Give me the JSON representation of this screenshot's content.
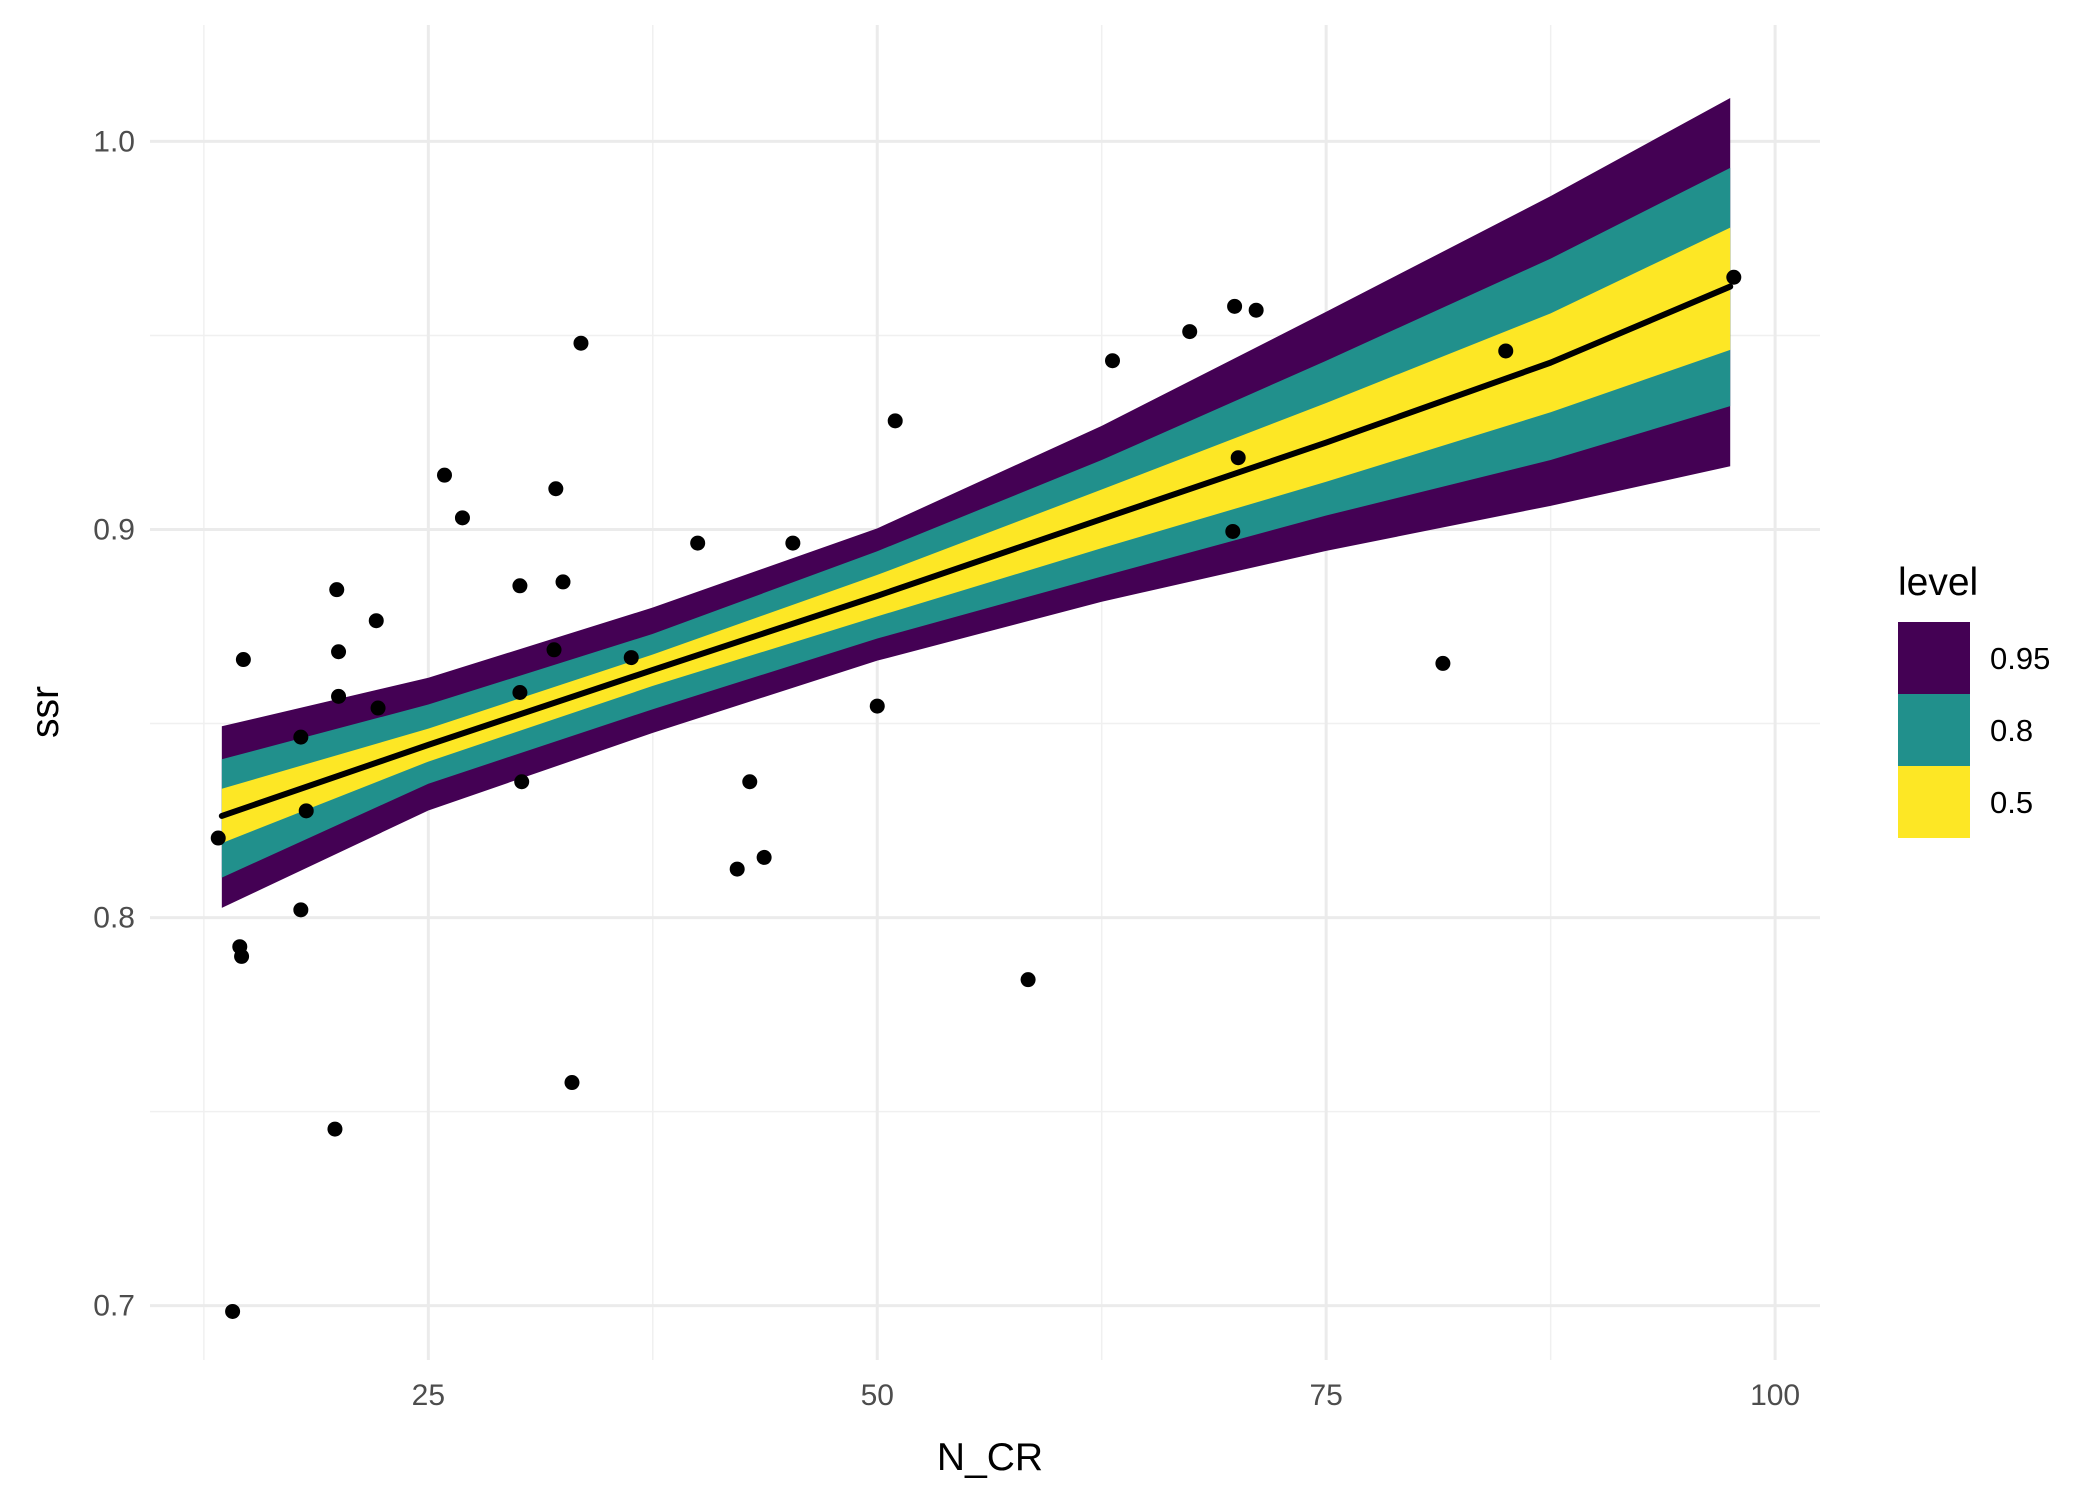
{
  "chart_data": {
    "type": "line",
    "xlabel": "N_CR",
    "ylabel": "ssr",
    "xlim": [
      9.5,
      102.5
    ],
    "ylim": [
      0.686,
      1.03
    ],
    "x_ticks": [
      25,
      50,
      75,
      100
    ],
    "x_tick_labels": [
      "25",
      "50",
      "75",
      "100"
    ],
    "y_ticks": [
      0.7,
      0.8,
      0.9,
      1.0
    ],
    "y_tick_labels": [
      "0.7",
      "0.8",
      "0.9",
      "1.0"
    ],
    "grid": true,
    "legend": {
      "title": "level",
      "placement": "right",
      "entries": [
        {
          "label": "0.95",
          "color": "#440154"
        },
        {
          "label": "0.8",
          "color": "#21908C"
        },
        {
          "label": "0.5",
          "color": "#FDE725"
        }
      ]
    },
    "ribbons": [
      {
        "level": "0.95",
        "color": "#440154",
        "x": [
          13.5,
          25,
          37.5,
          50,
          62.5,
          75,
          87.5,
          97.5
        ],
        "lower": [
          0.8025,
          0.8276,
          0.8476,
          0.8662,
          0.8814,
          0.8945,
          0.9061,
          0.9163
        ],
        "upper": [
          0.8493,
          0.8618,
          0.8799,
          0.9003,
          0.9267,
          0.9561,
          0.9859,
          1.0112
        ]
      },
      {
        "level": "0.8",
        "color": "#21908C",
        "x": [
          13.5,
          25,
          37.5,
          50,
          62.5,
          75,
          87.5,
          97.5
        ],
        "lower": [
          0.8103,
          0.8345,
          0.8537,
          0.8719,
          0.8879,
          0.9036,
          0.9179,
          0.9318
        ],
        "upper": [
          0.8408,
          0.8549,
          0.8731,
          0.8944,
          0.9179,
          0.9435,
          0.9698,
          0.9932
        ]
      },
      {
        "level": "0.5",
        "color": "#FDE725",
        "x": [
          13.5,
          25,
          37.5,
          50,
          62.5,
          75,
          87.5,
          97.5
        ],
        "lower": [
          0.8192,
          0.8402,
          0.8597,
          0.8776,
          0.8952,
          0.9123,
          0.9302,
          0.9463
        ],
        "upper": [
          0.8332,
          0.8487,
          0.8678,
          0.8883,
          0.9103,
          0.9326,
          0.9557,
          0.9778
        ]
      }
    ],
    "series": [
      {
        "type": "line",
        "color": "#000000",
        "x": [
          13.5,
          25,
          37.5,
          50,
          62.5,
          75,
          87.5,
          97.5
        ],
        "y": [
          0.8262,
          0.8445,
          0.8638,
          0.8829,
          0.9027,
          0.9224,
          0.943,
          0.9626
        ]
      }
    ],
    "points": {
      "color": "#000000",
      "x": [
        13.3,
        14.1,
        14.5,
        14.6,
        14.7,
        17.9,
        17.9,
        18.2,
        19.8,
        19.9,
        20.0,
        20.0,
        22.1,
        22.2,
        25.9,
        26.9,
        30.1,
        30.1,
        30.2,
        32.0,
        32.1,
        32.5,
        33.0,
        33.5,
        36.3,
        40.0,
        42.2,
        42.9,
        43.7,
        45.3,
        50.0,
        51.0,
        58.4,
        63.1,
        67.4,
        69.8,
        69.9,
        70.1,
        71.1,
        81.5,
        85.0,
        97.7
      ],
      "y": [
        0.8205,
        0.6985,
        0.7925,
        0.79,
        0.8665,
        0.802,
        0.8465,
        0.8275,
        0.7455,
        0.8845,
        0.8685,
        0.857,
        0.8765,
        0.854,
        0.914,
        0.903,
        0.8855,
        0.858,
        0.835,
        0.869,
        0.9105,
        0.8865,
        0.7575,
        0.948,
        0.867,
        0.8965,
        0.8125,
        0.835,
        0.8155,
        0.8965,
        0.8545,
        0.928,
        0.784,
        0.9435,
        0.951,
        0.8995,
        0.9575,
        0.9185,
        0.9565,
        0.8655,
        0.946,
        0.965
      ]
    }
  }
}
